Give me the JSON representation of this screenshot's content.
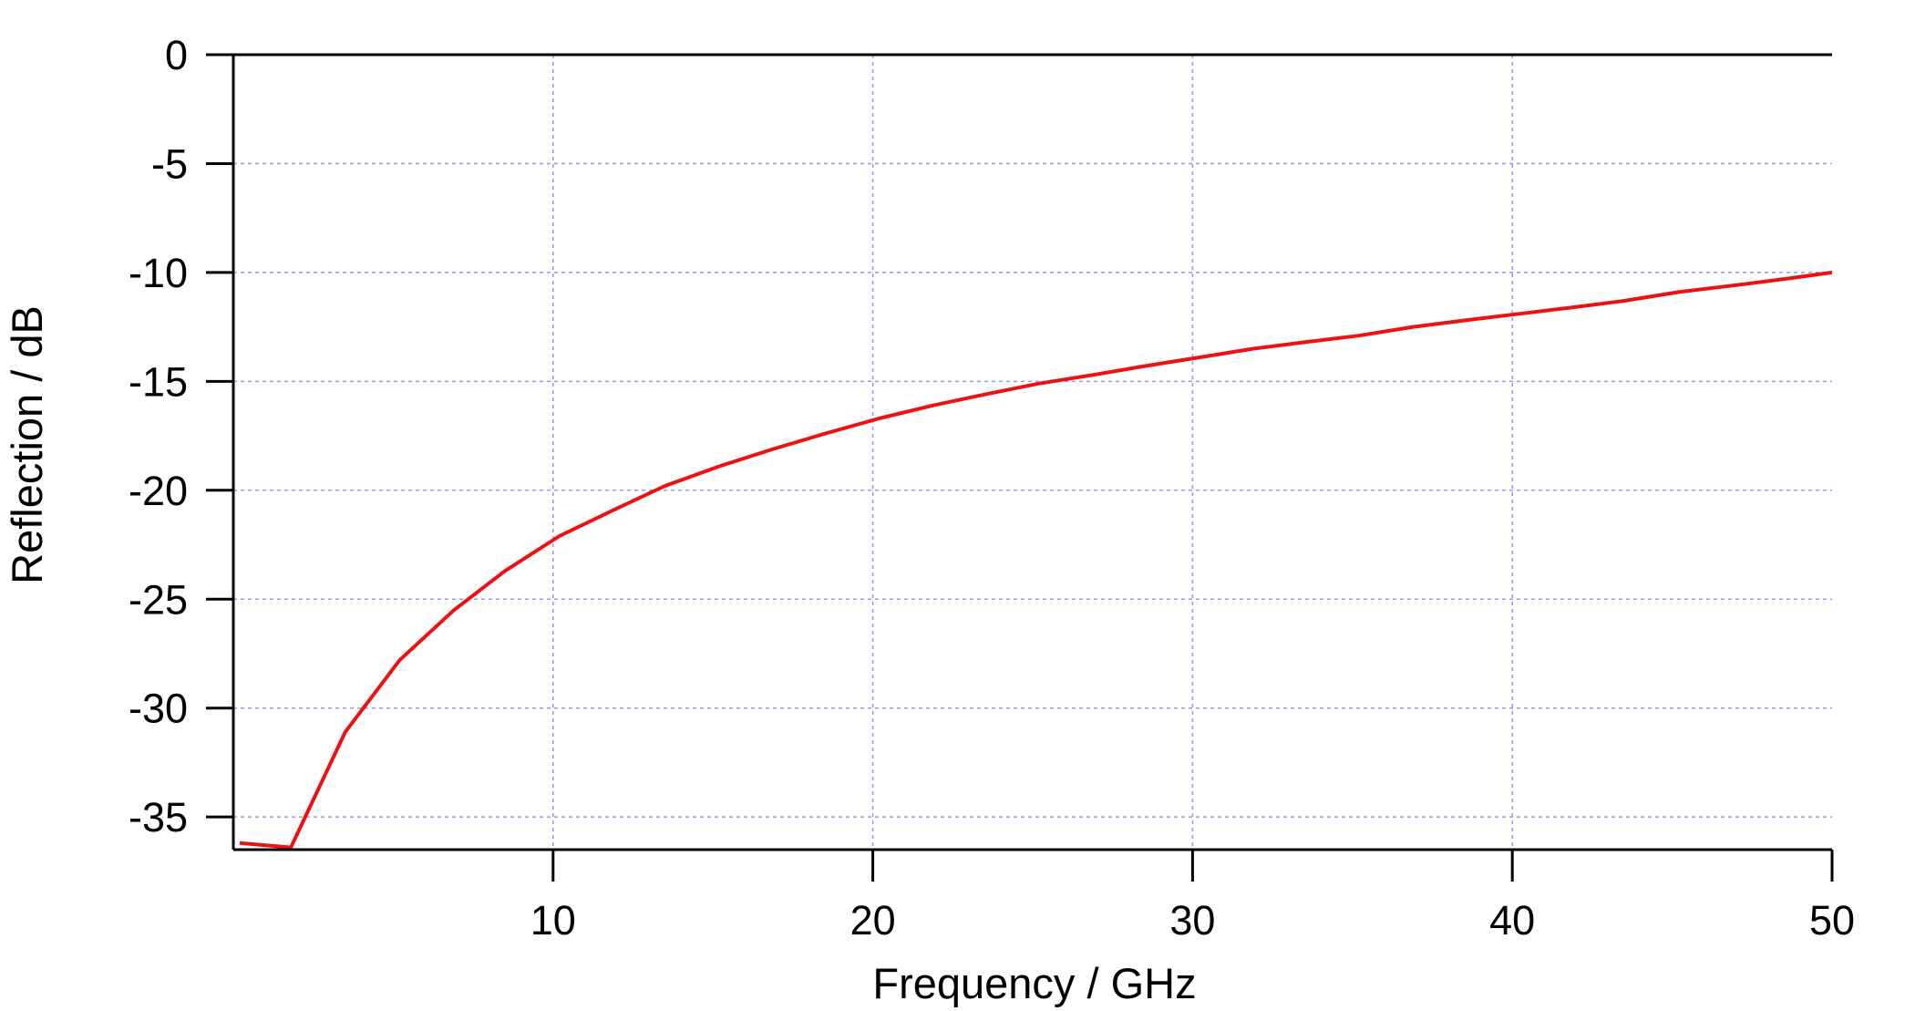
{
  "colors": {
    "series": "#ee1111",
    "grid": "#9999ee",
    "axis": "#000000",
    "background": "#ffffff"
  },
  "chart_data": {
    "type": "line",
    "title": "",
    "xlabel": "Frequency / GHz",
    "ylabel": "Reflection / dB",
    "xlim": [
      0,
      50
    ],
    "ylim": [
      -36.5,
      0
    ],
    "xticks": [
      10,
      20,
      30,
      40,
      50
    ],
    "xtick_labels": [
      "10",
      "20",
      "30",
      "40",
      "50"
    ],
    "yticks": [
      0,
      -5,
      -10,
      -15,
      -20,
      -25,
      -30,
      -35
    ],
    "ytick_labels": [
      "0",
      "-5",
      "-10",
      "-15",
      "-20",
      "-25",
      "-30",
      "-35"
    ],
    "grid": true,
    "legend": "none",
    "series": [
      {
        "x": [
          0.2,
          1.8,
          3.5,
          5.2,
          6.9,
          8.5,
          10.2,
          11.9,
          13.5,
          15.2,
          16.9,
          18.5,
          20.2,
          21.9,
          23.5,
          25.2,
          26.9,
          28.5,
          30.2,
          31.9,
          33.5,
          35.2,
          36.9,
          38.5,
          40.2,
          41.9,
          43.5,
          45.2,
          46.9,
          48.5,
          50
        ],
        "y": [
          -36.2,
          -36.4,
          -31.1,
          -27.8,
          -25.5,
          -23.7,
          -22.1,
          -20.9,
          -19.8,
          -18.9,
          -18.1,
          -17.4,
          -16.7,
          -16.1,
          -15.6,
          -15.1,
          -14.7,
          -14.3,
          -13.9,
          -13.5,
          -13.2,
          -12.9,
          -12.5,
          -12.2,
          -11.9,
          -11.6,
          -11.3,
          -10.9,
          -10.6,
          -10.3,
          -10.0
        ]
      }
    ]
  }
}
